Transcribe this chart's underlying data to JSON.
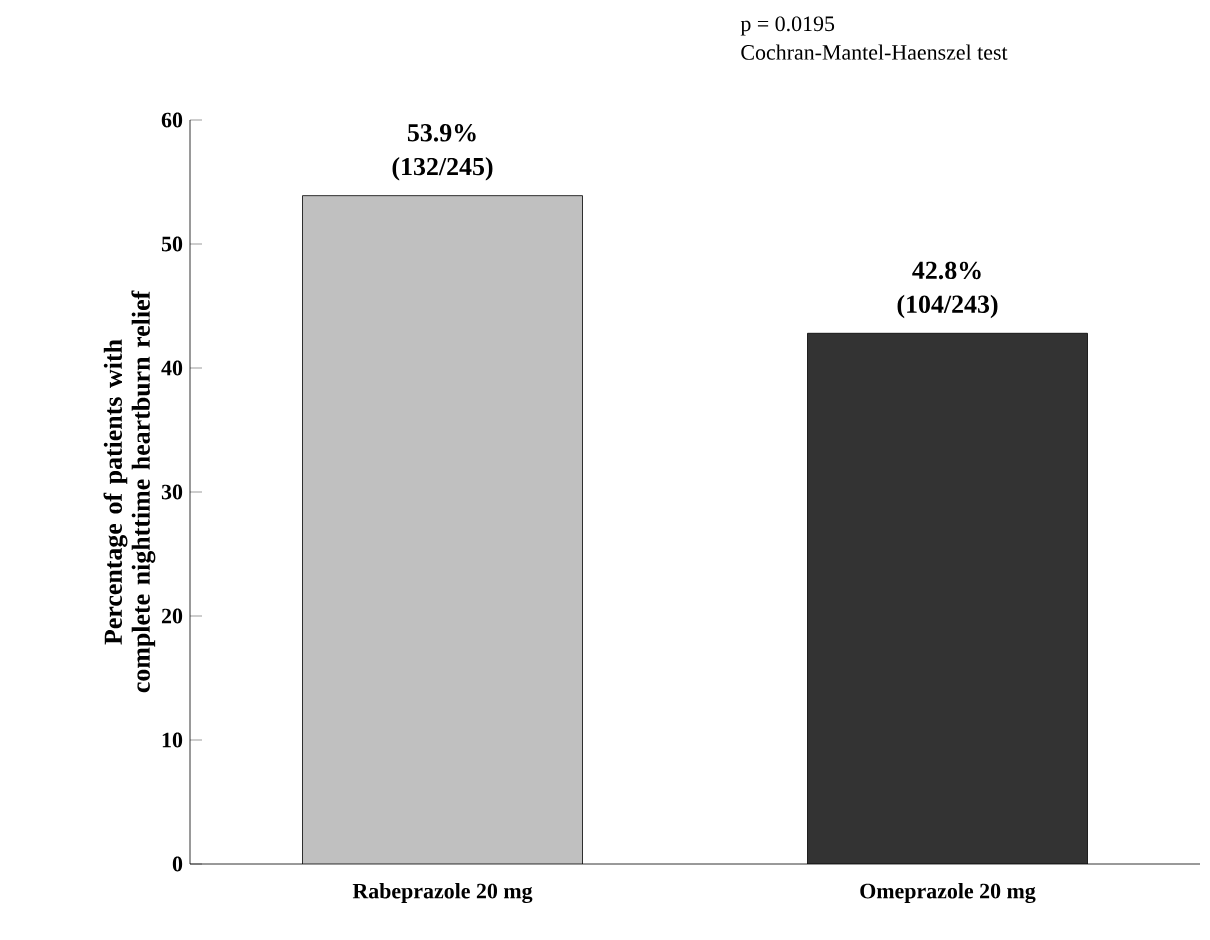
{
  "chart_data": {
    "type": "bar",
    "ylabel": "Percentage of patients with complete nighttime heartburn relief",
    "categories": [
      "Rabeprazole 20 mg",
      "Omeprazole 20 mg"
    ],
    "values": [
      53.9,
      42.8
    ],
    "colors": [
      "#c0c0c0",
      "#333333"
    ],
    "value_labels": [
      "53.9% (132/245)",
      "42.8% (104/243)"
    ],
    "ylim": [
      0,
      60
    ],
    "yticks": [
      0,
      10,
      20,
      30,
      40,
      50,
      60
    ],
    "annotations": [
      "p = 0.0195",
      "Cochran-Mantel-Haenszel test"
    ]
  }
}
